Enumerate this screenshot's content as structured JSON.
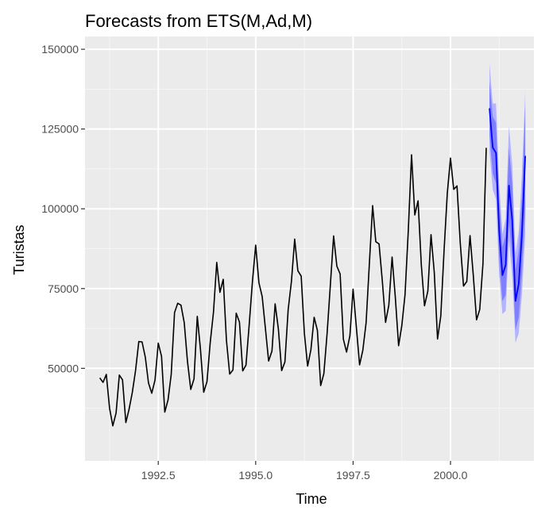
{
  "chart_data": {
    "type": "line",
    "title": "Forecasts from ETS(M,Ad,M)",
    "xlabel": "Time",
    "ylabel": "Turistas",
    "xlim": [
      1990.62,
      2002.14
    ],
    "ylim": [
      21000,
      154000
    ],
    "x_ticks": [
      1992.5,
      1995.0,
      1997.5,
      2000.0
    ],
    "x_tick_labels": [
      "1992.5",
      "1995.0",
      "1997.5",
      "2000.0"
    ],
    "y_ticks": [
      50000,
      75000,
      100000,
      125000,
      150000
    ],
    "y_tick_labels": [
      "50000",
      "75000",
      "100000",
      "125000",
      "150000"
    ],
    "grid": true,
    "colors": {
      "panel": "#ebebeb",
      "grid_major": "#ffffff",
      "grid_minor": "#f5f5f5",
      "observed": "#000000",
      "forecast": "#0000ff",
      "band_outer": "#b3b3ff",
      "band_inner": "#7f7fff"
    },
    "series": [
      {
        "role": "observed",
        "x": [
          1991.0,
          1991.083,
          1991.167,
          1991.25,
          1991.333,
          1991.417,
          1991.5,
          1991.583,
          1991.667,
          1991.75,
          1991.833,
          1991.917,
          1992.0,
          1992.083,
          1992.167,
          1992.25,
          1992.333,
          1992.417,
          1992.5,
          1992.583,
          1992.667,
          1992.75,
          1992.833,
          1992.917,
          1993.0,
          1993.083,
          1993.167,
          1993.25,
          1993.333,
          1993.417,
          1993.5,
          1993.583,
          1993.667,
          1993.75,
          1993.833,
          1993.917,
          1994.0,
          1994.083,
          1994.167,
          1994.25,
          1994.333,
          1994.417,
          1994.5,
          1994.583,
          1994.667,
          1994.75,
          1994.833,
          1994.917,
          1995.0,
          1995.083,
          1995.167,
          1995.25,
          1995.333,
          1995.417,
          1995.5,
          1995.583,
          1995.667,
          1995.75,
          1995.833,
          1995.917,
          1996.0,
          1996.083,
          1996.167,
          1996.25,
          1996.333,
          1996.417,
          1996.5,
          1996.583,
          1996.667,
          1996.75,
          1996.833,
          1996.917,
          1997.0,
          1997.083,
          1997.167,
          1997.25,
          1997.333,
          1997.417,
          1997.5,
          1997.583,
          1997.667,
          1997.75,
          1997.833,
          1997.917,
          1998.0,
          1998.083,
          1998.167,
          1998.25,
          1998.333,
          1998.417,
          1998.5,
          1998.583,
          1998.667,
          1998.75,
          1998.833,
          1998.917,
          1999.0,
          1999.083,
          1999.167,
          1999.25,
          1999.333,
          1999.417,
          1999.5,
          1999.583,
          1999.667,
          1999.75,
          1999.833,
          1999.917,
          2000.0,
          2000.083,
          2000.167,
          2000.25,
          2000.333,
          2000.417,
          2000.5,
          2000.583,
          2000.667,
          2000.75,
          2000.833,
          2000.917
        ],
        "y": [
          47000,
          45600,
          48100,
          37500,
          32000,
          36000,
          47900,
          46400,
          33000,
          37100,
          42400,
          49300,
          58400,
          58300,
          53500,
          45400,
          42200,
          46300,
          57900,
          53800,
          36300,
          40100,
          48100,
          67500,
          70400,
          69800,
          64300,
          52100,
          43400,
          46700,
          66300,
          56000,
          42500,
          45800,
          58100,
          67600,
          83200,
          73800,
          77900,
          58800,
          48200,
          49500,
          67300,
          64500,
          49200,
          51000,
          63500,
          77100,
          88600,
          76800,
          72500,
          62400,
          52300,
          55400,
          70200,
          62300,
          49300,
          52000,
          68400,
          77200,
          90500,
          80600,
          78900,
          61000,
          50700,
          55800,
          66000,
          61900,
          44600,
          48300,
          60900,
          76100,
          91500,
          82000,
          79600,
          59100,
          55100,
          60200,
          74800,
          63000,
          51100,
          55700,
          64300,
          82800,
          101000,
          89700,
          89000,
          77400,
          64400,
          69800,
          84900,
          72500,
          57100,
          63300,
          73100,
          93200,
          116900,
          98100,
          102500,
          82400,
          69600,
          74200,
          91900,
          80100,
          59200,
          66400,
          86800,
          104900,
          115900,
          106100,
          107200,
          89300,
          75800,
          77200,
          91600,
          79500,
          65200,
          68400,
          82900,
          119100
        ]
      },
      {
        "role": "forecast",
        "x": [
          2001.0,
          2001.083,
          2001.167,
          2001.25,
          2001.333,
          2001.417,
          2001.5,
          2001.583,
          2001.667,
          2001.75,
          2001.833,
          2001.917
        ],
        "y": [
          131500,
          119200,
          117500,
          93000,
          79200,
          82400,
          107300,
          96400,
          71100,
          76500,
          92000,
          116600
        ],
        "lo80": [
          123000,
          111000,
          108000,
          84000,
          71000,
          73000,
          96000,
          84500,
          62000,
          66000,
          80000,
          100000
        ],
        "hi80": [
          140000,
          129000,
          127000,
          103000,
          88000,
          92000,
          119000,
          108000,
          81000,
          87000,
          104000,
          132000
        ],
        "lo95": [
          118000,
          106000,
          103000,
          79000,
          67000,
          68000,
          90000,
          79000,
          58000,
          61000,
          73000,
          92000
        ],
        "hi95": [
          145500,
          133000,
          133000,
          108000,
          92000,
          97000,
          126000,
          114000,
          86000,
          93000,
          111000,
          137000
        ]
      }
    ]
  }
}
